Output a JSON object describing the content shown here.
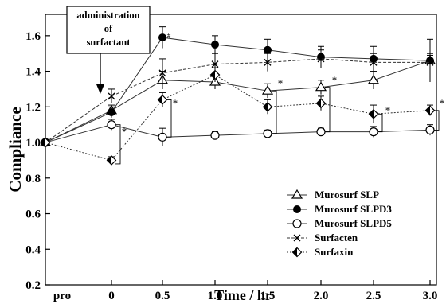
{
  "chart_data": {
    "type": "line",
    "xlabel": "Time / hr",
    "ylabel": "Compliance",
    "x_categories": [
      "pro",
      "0",
      "0.5",
      "1.0",
      "1.5",
      "2.0",
      "2.5",
      "3.0"
    ],
    "y_ticks": [
      "0.2",
      "0.4",
      "0.6",
      "0.8",
      "1.0",
      "1.2",
      "1.4",
      "1.6"
    ],
    "ylim": [
      0.2,
      1.72
    ],
    "annotation": [
      "administration",
      "of",
      "surfactant"
    ],
    "legend_position": "bottom-right",
    "significance_mark": "*",
    "small_mark": "#",
    "series": [
      {
        "name": "Murosurf SLP",
        "marker": "open-triangle",
        "line": "solid",
        "values": [
          1.0,
          1.18,
          1.35,
          1.34,
          1.29,
          1.31,
          1.35,
          1.46
        ],
        "errors": [
          0,
          0.03,
          0.05,
          0.04,
          0.04,
          0.04,
          0.05,
          0.03
        ],
        "stars_at": [
          4,
          5
        ]
      },
      {
        "name": "Murosurf SLPD3",
        "marker": "filled-circle",
        "line": "solid",
        "values": [
          1.0,
          1.17,
          1.59,
          1.55,
          1.52,
          1.48,
          1.47,
          1.46
        ],
        "errors": [
          0,
          0.03,
          0.06,
          0.05,
          0.06,
          0.06,
          0.07,
          0.12
        ],
        "stars_at": []
      },
      {
        "name": "Murosurf SLPD5",
        "marker": "open-circle",
        "line": "solid",
        "values": [
          1.0,
          1.1,
          1.03,
          1.04,
          1.05,
          1.06,
          1.06,
          1.07
        ],
        "errors": [
          0,
          0.03,
          0.05,
          0.02,
          0.02,
          0.02,
          0.03,
          0.03
        ],
        "stars_at": [
          1
        ]
      },
      {
        "name": "Surfacten",
        "marker": "x",
        "line": "dashed",
        "values": [
          1.0,
          1.26,
          1.39,
          1.44,
          1.45,
          1.47,
          1.45,
          1.45
        ],
        "errors": [
          0,
          0.04,
          0.08,
          0.06,
          0.05,
          0.05,
          0.05,
          0.05
        ],
        "stars_at": []
      },
      {
        "name": "Surfaxin",
        "marker": "open-diamond",
        "line": "dotted",
        "values": [
          1.0,
          0.9,
          1.24,
          1.38,
          1.2,
          1.22,
          1.16,
          1.18
        ],
        "errors": [
          0,
          0.02,
          0.04,
          0.04,
          0.04,
          0.04,
          0.05,
          0.03
        ],
        "stars_at": [
          2,
          6,
          7
        ]
      }
    ]
  }
}
